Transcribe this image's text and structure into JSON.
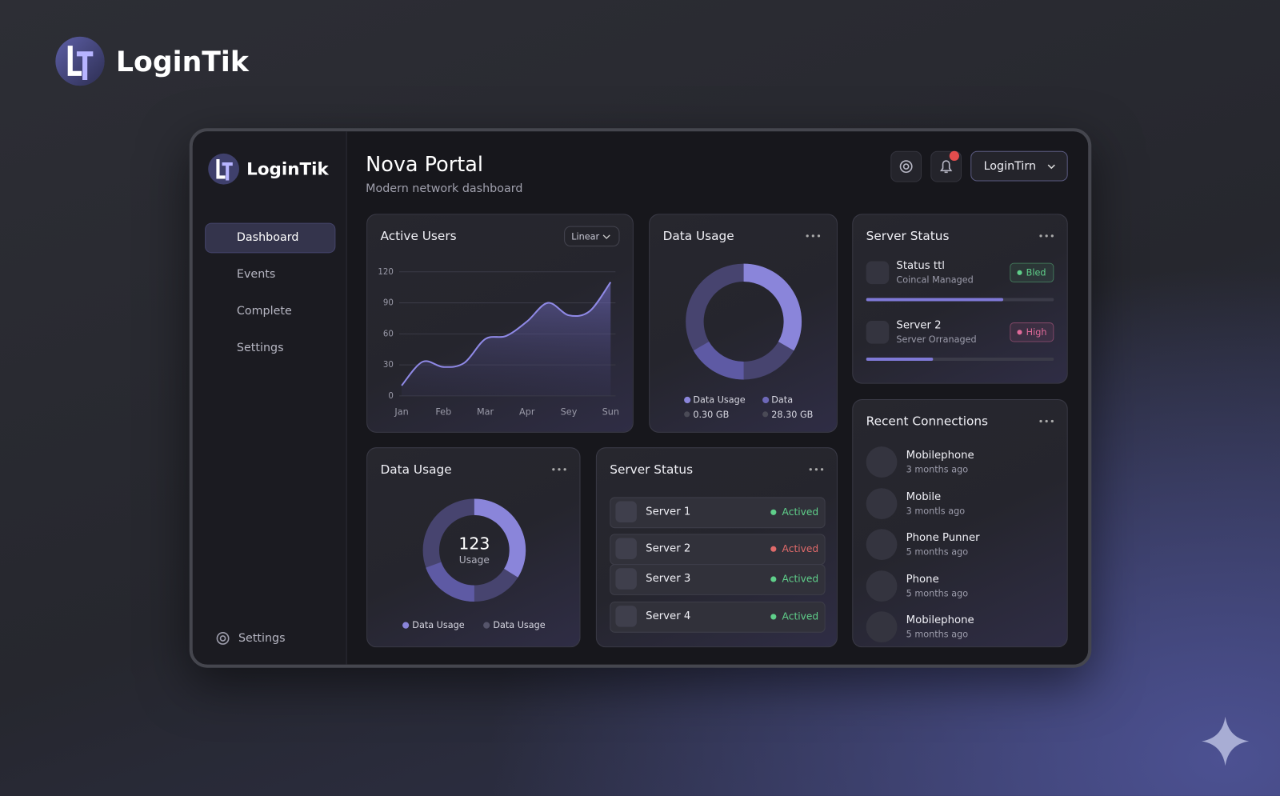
{
  "brand": {
    "name": "LoginTik"
  },
  "sidebar": {
    "brand": "LoginTik",
    "nav": [
      "Dashboard",
      "Events",
      "Complete",
      "Settings"
    ],
    "footer": "Settings"
  },
  "header": {
    "title": "Nova Portal",
    "subtitle": "Modern network dashboard",
    "user": "LoginTirn"
  },
  "active_users": {
    "title": "Active Users",
    "control": "Linear",
    "categories": [
      "Jan",
      null,
      "Feb",
      null,
      "Mar",
      null,
      "Apr",
      null,
      "Sey",
      null,
      "Sun"
    ],
    "values": [
      10,
      33,
      28,
      32,
      55,
      58,
      72,
      90,
      78,
      82,
      110
    ],
    "ylim": [
      0,
      120
    ],
    "yticks": [
      0,
      30,
      60,
      90,
      120
    ],
    "color": "#8f89e6",
    "grid": true
  },
  "data_usage_top": {
    "title": "Data Usage",
    "legend": [
      {
        "name": "Data Usage",
        "value": "0.30 GB"
      },
      {
        "name": "Data",
        "value": "28.30 GB"
      }
    ]
  },
  "server_status_top": {
    "title": "Server Status",
    "items": [
      {
        "name": "Status ttl",
        "sub": "Coincal Managed",
        "badge": "Bled",
        "color": "#5fcf8a"
      },
      {
        "name": "Server 2",
        "sub": "Server Orranaged",
        "badge": "High",
        "color": "#e06a9a"
      }
    ]
  },
  "recent_connections": {
    "title": "Recent Connections",
    "items": [
      {
        "name": "Mobilephone",
        "time": "3 months ago"
      },
      {
        "name": "Mobile",
        "time": "3 montls ago"
      },
      {
        "name": "Phone Punner",
        "time": "5 months ago"
      },
      {
        "name": "Phone",
        "time": "5 months ago"
      },
      {
        "name": "Mobilephone",
        "time": "5 months ago"
      }
    ]
  },
  "data_usage_bottom": {
    "title": "Data Usage",
    "center_value": "123",
    "center_label": "Usage",
    "legend": [
      "Data Usage",
      "Data Usage"
    ]
  },
  "server_status_bottom": {
    "title": "Server Status",
    "items": [
      {
        "name": "Server 1",
        "status": "Actived",
        "color": "#5fcf8a"
      },
      {
        "name": "Server 2",
        "status": "Actived",
        "color": "#e06a6a"
      },
      {
        "name": "Server 3",
        "status": "Actived",
        "color": "#5fcf8a"
      },
      {
        "name": "Server 4",
        "status": "Actived",
        "color": "#5fcf8a"
      }
    ]
  }
}
